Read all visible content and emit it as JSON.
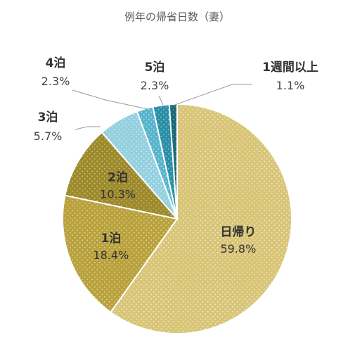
{
  "chart_data": {
    "type": "pie",
    "title": "例年の帰省日数（妻）",
    "slices": [
      {
        "label": "日帰り",
        "value": 59.8,
        "display": "59.8%",
        "color": "#d8c578",
        "dot": "#f3ebc8",
        "placement": "inside"
      },
      {
        "label": "1泊",
        "value": 18.4,
        "display": "18.4%",
        "color": "#b9a23e",
        "dot": "#e0d49a",
        "placement": "inside"
      },
      {
        "label": "2泊",
        "value": 10.3,
        "display": "10.3%",
        "color": "#9c8a2d",
        "dot": "#cfc07c",
        "placement": "inside"
      },
      {
        "label": "3泊",
        "value": 5.7,
        "display": "5.7%",
        "color": "#94d0df",
        "dot": "#d8eff5",
        "placement": "outside-left"
      },
      {
        "label": "4泊",
        "value": 2.3,
        "display": "2.3%",
        "color": "#56b5cc",
        "dot": "#b5e0ea",
        "placement": "outside-top-left"
      },
      {
        "label": "5泊",
        "value": 2.3,
        "display": "2.3%",
        "color": "#2a8fa6",
        "dot": "#8ac6d4",
        "placement": "outside-top"
      },
      {
        "label": "1週間以上",
        "value": 1.1,
        "display": "1.1%",
        "color": "#1b6679",
        "dot": "#6aa9b8",
        "placement": "outside-top-right"
      }
    ]
  }
}
